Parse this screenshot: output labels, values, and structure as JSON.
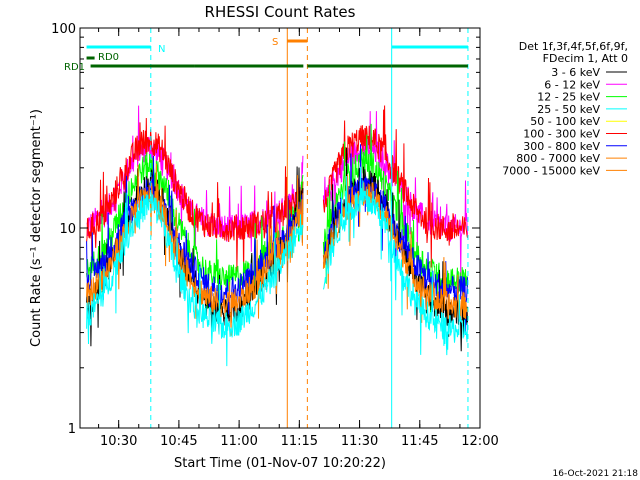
{
  "title": "RHESSI Count Rates",
  "ylabel": "Count Rate (s⁻¹ detector segment⁻¹)",
  "xlabel": "Start Time (01-Nov-07 10:20:22)",
  "stamp": "16-Oct-2021 21:18",
  "legend": {
    "header": [
      "Det 1f,3f,4f,5f,6f,9f,",
      "FDecim 1, Att 0"
    ],
    "entries": [
      {
        "label": "3 - 6 keV",
        "color": "#000000"
      },
      {
        "label": "6 - 12 keV",
        "color": "#ff00ff"
      },
      {
        "label": "12 - 25 keV",
        "color": "#00ff00"
      },
      {
        "label": "25 - 50 keV",
        "color": "#00ffff"
      },
      {
        "label": "50 - 100 keV",
        "color": "#ffff00"
      },
      {
        "label": "100 - 300 keV",
        "color": "#ff0000"
      },
      {
        "label": "300 - 800 keV",
        "color": "#0000ff"
      },
      {
        "label": "800 - 7000 keV",
        "color": "#ff8000"
      },
      {
        "label": "7000 - 15000 keV",
        "color": "#ff8000"
      }
    ]
  },
  "status_bars": [
    {
      "label": "N",
      "color": "#00ffff",
      "spans": [
        [
          "10:22",
          "10:38"
        ],
        [
          "11:38",
          "11:57"
        ]
      ]
    },
    {
      "label": "RD0",
      "color": "#006400",
      "spans": [
        [
          "10:22",
          "10:24"
        ]
      ]
    },
    {
      "label": "RD1",
      "color": "#006400",
      "spans": [
        [
          "10:23",
          "10:49"
        ],
        [
          "10:49",
          "11:16"
        ],
        [
          "11:17",
          "11:38"
        ],
        [
          "11:38",
          "11:57"
        ]
      ]
    },
    {
      "label": "S",
      "color": "#ff8000",
      "spans": [
        [
          "11:12",
          "11:17"
        ]
      ]
    }
  ],
  "markers": [
    {
      "time": "10:38",
      "color": "#00ffff",
      "style": "dashed"
    },
    {
      "time": "11:12",
      "color": "#ff8000",
      "style": "solid"
    },
    {
      "time": "11:17",
      "color": "#ff8000",
      "style": "dashed"
    },
    {
      "time": "11:38",
      "color": "#00ffff",
      "style": "solid"
    },
    {
      "time": "11:57",
      "color": "#00ffff",
      "style": "dashed"
    }
  ],
  "chart_data": {
    "type": "line",
    "title": "RHESSI Count Rates",
    "xlabel": "Start Time (01-Nov-07 10:20:22)",
    "ylabel": "Count Rate (s⁻¹ detector segment⁻¹)",
    "xlim": [
      "10:20:22",
      "12:00"
    ],
    "ylim": [
      1,
      100
    ],
    "yscale": "log",
    "xticks": [
      "10:30",
      "10:45",
      "11:00",
      "11:15",
      "11:30",
      "11:45",
      "12:00"
    ],
    "yticks": [
      1,
      10,
      100
    ],
    "ytick_labels": [
      "1",
      "10",
      "100"
    ],
    "data_gap": [
      "11:16",
      "11:21"
    ],
    "x": [
      "10:22",
      "10:27",
      "10:32",
      "10:35",
      "10:38",
      "10:41",
      "10:44",
      "10:48",
      "10:52",
      "10:56",
      "11:00",
      "11:04",
      "11:08",
      "11:12",
      "11:14",
      "11:16",
      "11:21",
      "11:24",
      "11:27",
      "11:30",
      "11:33",
      "11:36",
      "11:40",
      "11:44",
      "11:48",
      "11:52",
      "11:57"
    ],
    "series": [
      {
        "name": "6 - 12 keV",
        "color": "#ff00ff",
        "values": [
          10,
          12,
          19,
          24,
          26,
          22,
          17,
          12,
          10.5,
          10,
          10,
          10.5,
          11.5,
          12.5,
          14,
          20,
          12.5,
          18,
          22,
          25,
          25,
          22,
          16,
          12,
          10.5,
          10,
          10
        ]
      },
      {
        "name": "100 - 300 keV",
        "color": "#ff0000",
        "values": [
          9.5,
          12,
          20,
          26,
          28,
          24,
          17,
          12,
          10.3,
          10,
          10,
          10.3,
          11,
          12,
          13.5,
          17,
          12.5,
          19,
          25,
          28,
          28,
          24,
          17,
          12,
          10.3,
          9.8,
          9.8
        ]
      },
      {
        "name": "12 - 25 keV",
        "color": "#00ff00",
        "values": [
          6,
          8,
          14,
          19,
          21,
          17,
          11.5,
          7.5,
          6,
          5.5,
          5.7,
          6.5,
          8,
          10,
          12,
          16,
          8,
          13,
          18,
          21,
          21,
          17,
          11,
          7.5,
          6,
          5.5,
          5.5
        ]
      },
      {
        "name": "3 - 6 keV",
        "color": "#000000",
        "values": [
          4,
          6,
          11,
          15,
          17,
          13.5,
          8.5,
          5.5,
          4.2,
          3.8,
          4,
          5,
          6.5,
          9,
          11,
          14,
          6.5,
          11,
          15,
          17,
          17,
          13.5,
          8.5,
          5.5,
          4.2,
          3.8,
          3.8
        ]
      },
      {
        "name": "300 - 800 keV",
        "color": "#0000ff",
        "values": [
          5.5,
          7,
          11.5,
          14,
          15.5,
          13,
          9,
          6.5,
          5.2,
          4.8,
          5,
          6,
          7.5,
          9.5,
          11,
          14,
          7,
          11,
          14,
          15.5,
          15.5,
          13,
          9,
          6.5,
          5.3,
          4.9,
          4.9
        ]
      },
      {
        "name": "800 - 7000 keV",
        "color": "#ff8000",
        "values": [
          4.5,
          6,
          10,
          13,
          14.5,
          12,
          8,
          5.5,
          4.5,
          4.1,
          4.3,
          5.2,
          6.6,
          8.5,
          10,
          13,
          6.5,
          10,
          13,
          14.5,
          14.5,
          12,
          8,
          5.5,
          4.5,
          4.1,
          4.1
        ]
      },
      {
        "name": "25 - 50 keV",
        "color": "#00ffff",
        "values": [
          3.6,
          5,
          9,
          12,
          13.5,
          11,
          6.5,
          4.3,
          3.5,
          3.2,
          3.4,
          4.2,
          5.5,
          7.5,
          9,
          11,
          5.5,
          9,
          12,
          13.5,
          13.5,
          11,
          6.5,
          4.2,
          3.5,
          3.1,
          3.1
        ]
      }
    ]
  }
}
